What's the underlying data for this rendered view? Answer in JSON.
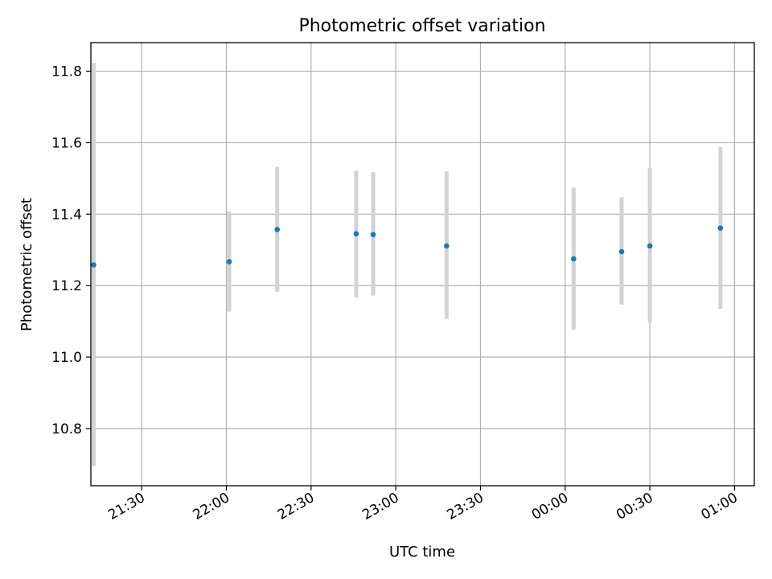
{
  "chart_data": {
    "type": "scatter",
    "title": "Photometric offset variation",
    "xlabel": "UTC time",
    "ylabel": "Photometric offset",
    "x_axis_type": "time",
    "xlim": [
      "21:12",
      "01:07"
    ],
    "ylim": [
      10.64,
      11.88
    ],
    "grid": true,
    "x_ticks": [
      "21:30",
      "22:00",
      "22:30",
      "23:00",
      "23:30",
      "00:00",
      "00:30",
      "01:00"
    ],
    "y_ticks": [
      10.8,
      11.0,
      11.2,
      11.4,
      11.6,
      11.8
    ],
    "y_tick_labels": [
      "10.8",
      "11.0",
      "11.2",
      "11.4",
      "11.6",
      "11.8"
    ],
    "marker_color": "#1f77b4",
    "errorbar_color": "#d3d3d3",
    "points": [
      {
        "x": "21:13",
        "y": 11.258,
        "yerr_low": 10.695,
        "yerr_high": 11.823
      },
      {
        "x": "22:01",
        "y": 11.267,
        "yerr_low": 11.127,
        "yerr_high": 11.407
      },
      {
        "x": "22:18",
        "y": 11.357,
        "yerr_low": 11.183,
        "yerr_high": 11.532
      },
      {
        "x": "22:46",
        "y": 11.345,
        "yerr_low": 11.167,
        "yerr_high": 11.522
      },
      {
        "x": "22:52",
        "y": 11.343,
        "yerr_low": 11.172,
        "yerr_high": 11.517
      },
      {
        "x": "23:18",
        "y": 11.311,
        "yerr_low": 11.107,
        "yerr_high": 11.52
      },
      {
        "x": "00:03",
        "y": 11.275,
        "yerr_low": 11.077,
        "yerr_high": 11.474
      },
      {
        "x": "00:20",
        "y": 11.295,
        "yerr_low": 11.147,
        "yerr_high": 11.447
      },
      {
        "x": "00:30",
        "y": 11.311,
        "yerr_low": 11.097,
        "yerr_high": 11.53
      },
      {
        "x": "00:55",
        "y": 11.361,
        "yerr_low": 11.135,
        "yerr_high": 11.588
      }
    ]
  }
}
